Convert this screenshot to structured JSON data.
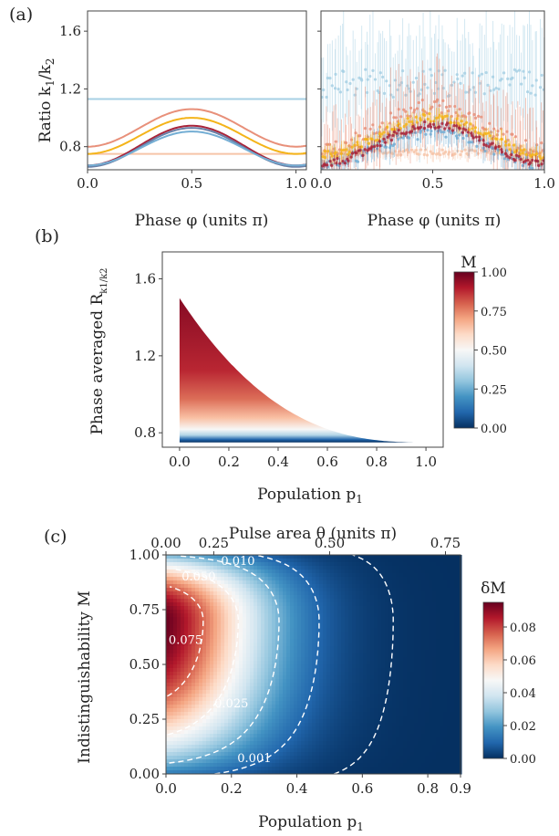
{
  "chart_data": [
    {
      "panel": "(a)",
      "type": "line",
      "subpanel": "left",
      "xlabel": "Phase φ (units π)",
      "ylabel": "Ratio k1/k2",
      "ylabel_main": "Ratio k",
      "ylabel_sub1": "1",
      "ylabel_slash": "/k",
      "ylabel_sub2": "2",
      "xlim": [
        0,
        1.05
      ],
      "ylim": [
        0.64,
        1.74
      ],
      "xticks": [
        "0.0",
        "0.5",
        "1.0"
      ],
      "yticks": [
        "0.8",
        "1.2",
        "1.6"
      ],
      "xtick_values": [
        0,
        0.5,
        1.0
      ],
      "ytick_values": [
        0.8,
        1.2,
        1.6
      ],
      "series": [
        {
          "color": "#a7d0e4",
          "min": 1.13,
          "max": 1.13
        },
        {
          "color": "#f6c4a8",
          "min": 0.75,
          "max": 0.75
        },
        {
          "color": "#e8907a",
          "min": 0.8,
          "max": 1.06
        },
        {
          "color": "#f4b41a",
          "min": 0.75,
          "max": 1.0
        },
        {
          "color": "#a8243a",
          "min": 0.67,
          "max": 0.945
        },
        {
          "color": "#6a7fa6",
          "min": 0.66,
          "max": 0.93
        },
        {
          "color": "#74aed4",
          "min": 0.67,
          "max": 0.905
        }
      ]
    },
    {
      "panel": "(a)",
      "type": "scatter",
      "subpanel": "right",
      "xlabel": "Phase φ (units π)",
      "xlim": [
        0,
        1.0
      ],
      "ylim": [
        0.64,
        1.74
      ],
      "xticks": [
        "0.0",
        "0.5",
        "1.0"
      ],
      "xtick_values": [
        0,
        0.5,
        1.0
      ],
      "series": [
        {
          "color": "#a7d0e4",
          "center": 1.24,
          "amp": 0.0,
          "spread": 0.1,
          "errbar": 0.32
        },
        {
          "color": "#f6c4a8",
          "center": 0.76,
          "amp": 0.0,
          "spread": 0.02,
          "errbar": 0.04
        },
        {
          "color": "#e8907a",
          "base": 0.78,
          "peak": 1.08,
          "spread": 0.05,
          "errbar": 0.22
        },
        {
          "color": "#74aed4",
          "base": 0.68,
          "peak": 0.9,
          "spread": 0.04,
          "errbar": 0.08
        },
        {
          "color": "#f4b41a",
          "base": 0.74,
          "peak": 1.0,
          "spread": 0.03,
          "errbar": 0.05
        },
        {
          "color": "#a8243a",
          "base": 0.68,
          "peak": 0.95,
          "spread": 0.025,
          "errbar": 0.03
        }
      ]
    },
    {
      "panel": "(b)",
      "type": "heatmap",
      "xlabel": "Population p1",
      "xlabel_main": "Population p",
      "xlabel_sub": "1",
      "ylabel": "Phase averaged R k1/k2",
      "ylabel_main": "Phase averaged R",
      "ylabel_sub": "k1/k2",
      "xlim": [
        -0.07,
        1.07
      ],
      "ylim": [
        0.725,
        1.74
      ],
      "xticks": [
        "0.0",
        "0.2",
        "0.4",
        "0.6",
        "0.8",
        "1.0"
      ],
      "xtick_values": [
        0,
        0.2,
        0.4,
        0.6,
        0.8,
        1.0
      ],
      "yticks": [
        "0.8",
        "1.2",
        "1.6"
      ],
      "ytick_values": [
        0.8,
        1.2,
        1.6
      ],
      "lower_bound": 0.75,
      "upper_bound_at_p0": 1.5,
      "colorbar": {
        "label": "M",
        "ticks": [
          "0.00",
          "0.25",
          "0.50",
          "0.75",
          "1.00"
        ],
        "tick_values": [
          0,
          0.25,
          0.5,
          0.75,
          1.0
        ],
        "range": [
          0,
          1
        ]
      }
    },
    {
      "panel": "(c)",
      "type": "heatmap",
      "xlabel": "Population p1",
      "xlabel_main": "Population p",
      "xlabel_sub": "1",
      "top_xlabel": "Pulse area θ (units π)",
      "ylabel": "Indistinguishability M",
      "xlim": [
        0,
        0.9
      ],
      "ylim": [
        0,
        1.0
      ],
      "xticks": [
        "0.0",
        "0.2",
        "0.4",
        "0.6",
        "0.8",
        "0.9"
      ],
      "xtick_values": [
        0,
        0.2,
        0.4,
        0.6,
        0.8,
        0.9
      ],
      "top_xticks": [
        "0.00",
        "0.25",
        "0.50",
        "0.75"
      ],
      "top_xtick_positions_p1": [
        0,
        0.146,
        0.5,
        0.854
      ],
      "yticks": [
        "0.00",
        "0.25",
        "0.50",
        "0.75",
        "1.00"
      ],
      "ytick_values": [
        0,
        0.25,
        0.5,
        0.75,
        1.0
      ],
      "peak": {
        "p1": 0.0,
        "M": 0.7,
        "value": 0.095
      },
      "contours": [
        {
          "level": 0.001,
          "label": "0.001"
        },
        {
          "level": 0.01,
          "label": "0.010"
        },
        {
          "level": 0.025,
          "label": "0.025"
        },
        {
          "level": 0.05,
          "label": "0.050"
        },
        {
          "level": 0.075,
          "label": "0.075"
        }
      ],
      "colorbar": {
        "label": "δM",
        "ticks": [
          "0.00",
          "0.02",
          "0.04",
          "0.06",
          "0.08"
        ],
        "tick_values": [
          0,
          0.02,
          0.04,
          0.06,
          0.08
        ],
        "range": [
          0,
          0.095
        ]
      }
    }
  ]
}
